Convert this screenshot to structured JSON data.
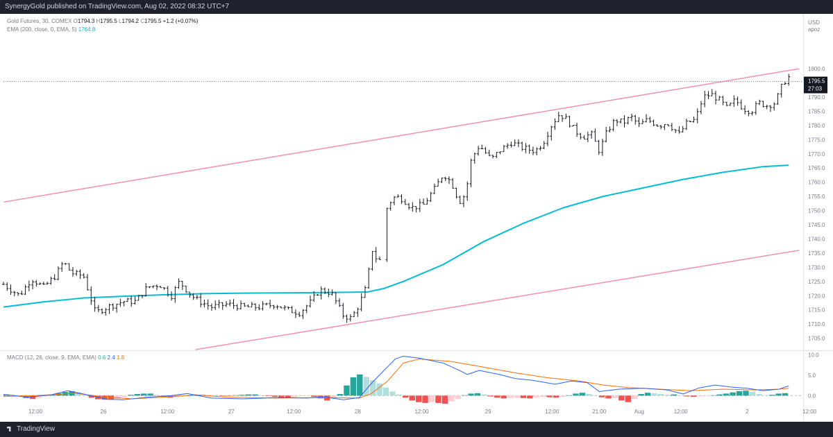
{
  "header": {
    "publish_line": "SynergyGold published on TradingView.com, Aug 02, 2022 08:32 UTC+7"
  },
  "legend": {
    "symbol": "Gold Futures, 30, COMEX",
    "open_label": "O",
    "open": "1794.3",
    "high_label": "H",
    "high": "1795.5",
    "low_label": "L",
    "low": "1794.2",
    "close_label": "C",
    "close": "1795.5",
    "change": "+1.2 (+0.07%)",
    "ema_label": "EMA (200, close, 0, EMA, 5)",
    "ema_value": "1764.8"
  },
  "price_axis": {
    "currency": "USD",
    "unit": "apoz",
    "last_price": "1795.5",
    "countdown": "27:03"
  },
  "macd_legend": {
    "label": "MACD (12, 26, close, 9, EMA, EMA)",
    "hist": "0.6",
    "macd": "2.4",
    "signal": "1.8"
  },
  "footer": {
    "brand": "TradingView"
  },
  "colors": {
    "ema": "#00bcd4",
    "channel": "#f48fb1",
    "macd": "#2962ff",
    "signal": "#ff6d00",
    "hist_up": "#26a69a",
    "hist_down": "#ef5350"
  },
  "chart_data": {
    "type": "candlestick-ohlc",
    "y_range": [
      1701,
      1812
    ],
    "y_ticks": [
      1705,
      1710,
      1715,
      1720,
      1725,
      1730,
      1735,
      1740,
      1745,
      1750,
      1755,
      1760,
      1765,
      1770,
      1775,
      1780,
      1785,
      1790,
      1800
    ],
    "x_ticks": [
      {
        "t": 0.04,
        "label": "12:00"
      },
      {
        "t": 0.125,
        "label": "26"
      },
      {
        "t": 0.205,
        "label": "12:00"
      },
      {
        "t": 0.285,
        "label": "27"
      },
      {
        "t": 0.363,
        "label": "12:00"
      },
      {
        "t": 0.443,
        "label": "28"
      },
      {
        "t": 0.523,
        "label": "12:00"
      },
      {
        "t": 0.606,
        "label": "29"
      },
      {
        "t": 0.686,
        "label": "12:00"
      },
      {
        "t": 0.745,
        "label": "21:00"
      },
      {
        "t": 0.795,
        "label": "Aug"
      },
      {
        "t": 0.847,
        "label": "12:00"
      },
      {
        "t": 0.93,
        "label": "2"
      },
      {
        "t": 1.008,
        "label": "12:00"
      }
    ],
    "price_path": [
      [
        0.0,
        1724
      ],
      [
        0.02,
        1720
      ],
      [
        0.035,
        1726
      ],
      [
        0.05,
        1723
      ],
      [
        0.065,
        1727
      ],
      [
        0.075,
        1732
      ],
      [
        0.085,
        1728
      ],
      [
        0.1,
        1727
      ],
      [
        0.115,
        1714
      ],
      [
        0.13,
        1716
      ],
      [
        0.15,
        1718
      ],
      [
        0.165,
        1718
      ],
      [
        0.18,
        1723
      ],
      [
        0.195,
        1724
      ],
      [
        0.21,
        1720
      ],
      [
        0.22,
        1725
      ],
      [
        0.235,
        1720
      ],
      [
        0.245,
        1718
      ],
      [
        0.26,
        1716
      ],
      [
        0.28,
        1717
      ],
      [
        0.3,
        1716
      ],
      [
        0.32,
        1716
      ],
      [
        0.34,
        1717
      ],
      [
        0.355,
        1715
      ],
      [
        0.37,
        1714
      ],
      [
        0.385,
        1718
      ],
      [
        0.395,
        1722
      ],
      [
        0.41,
        1721
      ],
      [
        0.425,
        1713
      ],
      [
        0.435,
        1712
      ],
      [
        0.445,
        1717
      ],
      [
        0.455,
        1724
      ],
      [
        0.46,
        1737
      ],
      [
        0.468,
        1732
      ],
      [
        0.473,
        1733
      ],
      [
        0.48,
        1752
      ],
      [
        0.49,
        1755
      ],
      [
        0.5,
        1754
      ],
      [
        0.51,
        1751
      ],
      [
        0.525,
        1752
      ],
      [
        0.54,
        1758
      ],
      [
        0.55,
        1763
      ],
      [
        0.56,
        1760
      ],
      [
        0.57,
        1753
      ],
      [
        0.578,
        1756
      ],
      [
        0.585,
        1768
      ],
      [
        0.595,
        1773
      ],
      [
        0.61,
        1768
      ],
      [
        0.62,
        1771
      ],
      [
        0.635,
        1774
      ],
      [
        0.65,
        1772
      ],
      [
        0.665,
        1771
      ],
      [
        0.675,
        1774
      ],
      [
        0.685,
        1780
      ],
      [
        0.695,
        1784
      ],
      [
        0.705,
        1782
      ],
      [
        0.715,
        1778
      ],
      [
        0.725,
        1776
      ],
      [
        0.735,
        1777
      ],
      [
        0.745,
        1771
      ],
      [
        0.755,
        1778
      ],
      [
        0.765,
        1782
      ],
      [
        0.775,
        1781
      ],
      [
        0.785,
        1783
      ],
      [
        0.795,
        1780
      ],
      [
        0.805,
        1782
      ],
      [
        0.82,
        1780
      ],
      [
        0.83,
        1781
      ],
      [
        0.845,
        1777
      ],
      [
        0.855,
        1781
      ],
      [
        0.865,
        1782
      ],
      [
        0.875,
        1790
      ],
      [
        0.885,
        1791
      ],
      [
        0.895,
        1789
      ],
      [
        0.905,
        1786
      ],
      [
        0.915,
        1789
      ],
      [
        0.925,
        1786
      ],
      [
        0.935,
        1785
      ],
      [
        0.945,
        1788
      ],
      [
        0.955,
        1787
      ],
      [
        0.965,
        1788
      ],
      [
        0.975,
        1795
      ],
      [
        0.982,
        1797
      ]
    ],
    "ema_path": [
      [
        0.0,
        1716
      ],
      [
        0.05,
        1717.8
      ],
      [
        0.1,
        1719.2
      ],
      [
        0.15,
        1719.8
      ],
      [
        0.2,
        1720.3
      ],
      [
        0.25,
        1720.7
      ],
      [
        0.3,
        1720.9
      ],
      [
        0.35,
        1721.0
      ],
      [
        0.4,
        1721.1
      ],
      [
        0.455,
        1721.3
      ],
      [
        0.475,
        1722.5
      ],
      [
        0.5,
        1725
      ],
      [
        0.55,
        1731
      ],
      [
        0.6,
        1739
      ],
      [
        0.65,
        1745.5
      ],
      [
        0.7,
        1751
      ],
      [
        0.75,
        1755
      ],
      [
        0.8,
        1758
      ],
      [
        0.85,
        1761
      ],
      [
        0.9,
        1763.5
      ],
      [
        0.95,
        1765.5
      ],
      [
        0.982,
        1766
      ]
    ],
    "channel_upper": [
      [
        0.0,
        1753
      ],
      [
        0.995,
        1800
      ]
    ],
    "channel_lower": [
      [
        0.24,
        1701
      ],
      [
        0.995,
        1736
      ]
    ],
    "macd": {
      "y_range": [
        -2.5,
        10.8
      ],
      "y_ticks": [
        10.0,
        5.0,
        0.0
      ],
      "macd_path": [
        [
          0.0,
          0.3
        ],
        [
          0.03,
          -0.4
        ],
        [
          0.06,
          0.2
        ],
        [
          0.08,
          1.2
        ],
        [
          0.1,
          0.4
        ],
        [
          0.13,
          -0.9
        ],
        [
          0.15,
          -1.0
        ],
        [
          0.18,
          -0.4
        ],
        [
          0.21,
          0.0
        ],
        [
          0.23,
          0.5
        ],
        [
          0.26,
          -0.6
        ],
        [
          0.3,
          -0.8
        ],
        [
          0.34,
          -0.5
        ],
        [
          0.38,
          -0.6
        ],
        [
          0.4,
          -0.3
        ],
        [
          0.425,
          -1.0
        ],
        [
          0.445,
          -0.5
        ],
        [
          0.46,
          3.0
        ],
        [
          0.475,
          6.0
        ],
        [
          0.49,
          9.0
        ],
        [
          0.5,
          9.7
        ],
        [
          0.52,
          9.2
        ],
        [
          0.55,
          8.0
        ],
        [
          0.57,
          6.2
        ],
        [
          0.58,
          5.2
        ],
        [
          0.595,
          6.2
        ],
        [
          0.62,
          5.2
        ],
        [
          0.64,
          4.2
        ],
        [
          0.66,
          3.8
        ],
        [
          0.69,
          2.8
        ],
        [
          0.71,
          3.6
        ],
        [
          0.73,
          3.2
        ],
        [
          0.745,
          1.0
        ],
        [
          0.77,
          1.6
        ],
        [
          0.8,
          1.8
        ],
        [
          0.83,
          1.4
        ],
        [
          0.85,
          0.4
        ],
        [
          0.87,
          1.9
        ],
        [
          0.89,
          2.6
        ],
        [
          0.91,
          2.1
        ],
        [
          0.93,
          1.8
        ],
        [
          0.95,
          1.2
        ],
        [
          0.97,
          1.6
        ],
        [
          0.982,
          2.4
        ]
      ],
      "signal_path": [
        [
          0.0,
          -0.2
        ],
        [
          0.04,
          0.0
        ],
        [
          0.09,
          0.6
        ],
        [
          0.12,
          -0.2
        ],
        [
          0.16,
          -0.8
        ],
        [
          0.2,
          -0.4
        ],
        [
          0.24,
          0.2
        ],
        [
          0.28,
          -0.4
        ],
        [
          0.34,
          -0.6
        ],
        [
          0.4,
          -0.5
        ],
        [
          0.445,
          -0.6
        ],
        [
          0.46,
          0.5
        ],
        [
          0.48,
          3.5
        ],
        [
          0.5,
          8.0
        ],
        [
          0.52,
          9.0
        ],
        [
          0.56,
          8.4
        ],
        [
          0.6,
          7.0
        ],
        [
          0.64,
          5.6
        ],
        [
          0.68,
          4.4
        ],
        [
          0.72,
          3.6
        ],
        [
          0.75,
          2.6
        ],
        [
          0.78,
          2.0
        ],
        [
          0.82,
          1.6
        ],
        [
          0.86,
          1.2
        ],
        [
          0.9,
          1.6
        ],
        [
          0.94,
          1.4
        ],
        [
          0.97,
          1.6
        ],
        [
          0.982,
          1.8
        ]
      ],
      "hist": [
        0.3,
        0.2,
        -0.2,
        -0.6,
        -0.8,
        -0.6,
        -0.2,
        0.2,
        0.6,
        0.9,
        1.1,
        0.8,
        0.2,
        -0.5,
        -0.9,
        -1.0,
        -1.0,
        -0.8,
        -0.4,
        0.2,
        0.4,
        0.5,
        0.5,
        0.2,
        -0.3,
        -0.5,
        -0.4,
        -0.2,
        0.0,
        0.1,
        0.2,
        0.1,
        0.0,
        -0.1,
        -0.1,
        0.1,
        0.2,
        0.3,
        0.3,
        0.1,
        -0.1,
        -0.3,
        -0.5,
        -0.6,
        -0.4,
        -0.2,
        -0.1,
        -0.3,
        -0.7,
        -1.2,
        -0.6,
        0.4,
        2.5,
        4.5,
        5.2,
        4.6,
        3.8,
        3.0,
        2.0,
        1.0,
        0.3,
        -0.5,
        -1.2,
        -1.6,
        -1.8,
        -1.6,
        -1.8,
        -2.0,
        -1.4,
        -0.8,
        0.1,
        0.5,
        0.6,
        0.3,
        -0.2,
        -0.5,
        -0.7,
        -0.6,
        -0.5,
        -0.6,
        -0.7,
        -0.5,
        -0.3,
        -0.4,
        -0.5,
        -0.3,
        0.1,
        0.5,
        0.7,
        0.4,
        0.0,
        -0.4,
        -0.7,
        -0.6,
        -1.2,
        -1.6,
        -0.8,
        0.4,
        0.7,
        0.6,
        0.4,
        0.2,
        0.3,
        0.1,
        -0.2,
        -0.3,
        -0.2,
        -0.1,
        0.1,
        0.3,
        0.5,
        0.8,
        1.1,
        1.2,
        0.9,
        0.4,
        0.1,
        0.2,
        0.5,
        0.6
      ]
    }
  }
}
